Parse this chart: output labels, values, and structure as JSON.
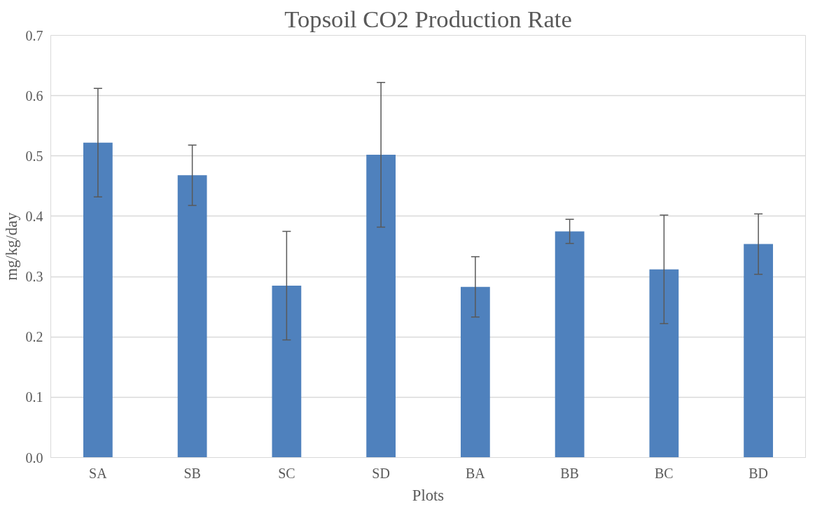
{
  "chart_data": {
    "type": "bar",
    "title": "Topsoil CO2 Production Rate",
    "xlabel": "Plots",
    "ylabel": "mg/kg/day",
    "categories": [
      "SA",
      "SB",
      "SC",
      "SD",
      "BA",
      "BB",
      "BC",
      "BD"
    ],
    "values": [
      0.522,
      0.468,
      0.285,
      0.502,
      0.283,
      0.375,
      0.312,
      0.354
    ],
    "errors": [
      0.09,
      0.05,
      0.09,
      0.12,
      0.05,
      0.02,
      0.09,
      0.05
    ],
    "color": "#4f81bd",
    "ylim": [
      0,
      0.7
    ],
    "yticks": [
      {
        "value": 0,
        "label": "0.0"
      },
      0.1,
      0.2,
      0.3,
      0.4,
      0.5,
      0.6,
      0.7
    ],
    "grid": "y"
  }
}
